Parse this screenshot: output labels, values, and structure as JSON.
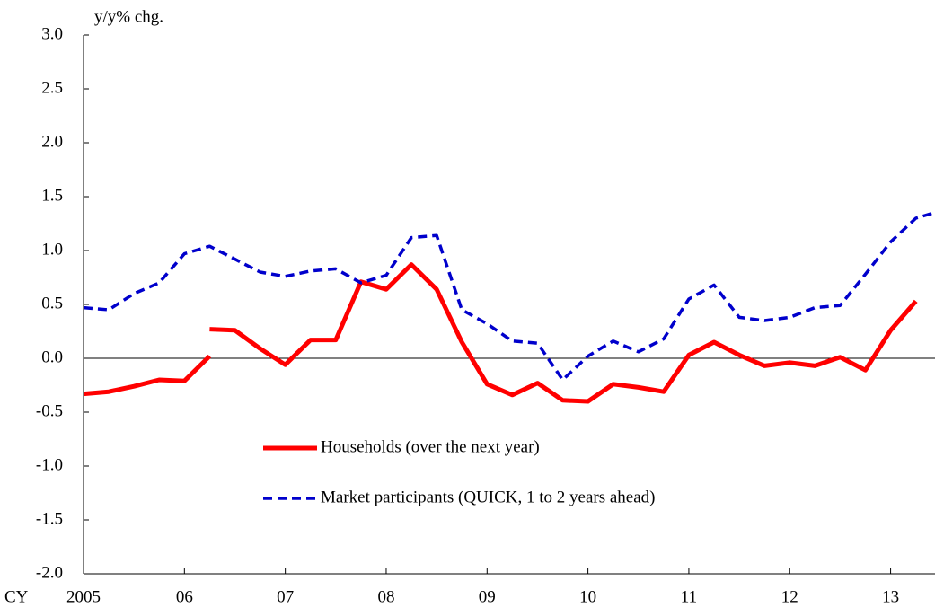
{
  "chart_data": {
    "type": "line",
    "ylabel": "y/y% chg.",
    "xprefix": "CY",
    "xlim": [
      2005,
      2013.44
    ],
    "ylim": [
      -2.0,
      3.0
    ],
    "xticks": [
      2005,
      {
        "value": 2006,
        "label": "06"
      },
      {
        "value": 2007,
        "label": "07"
      },
      {
        "value": 2008,
        "label": "08"
      },
      {
        "value": 2009,
        "label": "09"
      },
      {
        "value": 2010,
        "label": "10"
      },
      {
        "value": 2011,
        "label": "11"
      },
      {
        "value": 2012,
        "label": "12"
      },
      {
        "value": 2013,
        "label": "13"
      }
    ],
    "yticks": [
      {
        "value": -2,
        "label": "-2.0"
      },
      {
        "value": -1.5,
        "label": "-1.5"
      },
      {
        "value": -1,
        "label": "-1.0"
      },
      -0.5,
      {
        "value": 0,
        "label": "0.0"
      },
      0.5,
      {
        "value": 1,
        "label": "1.0"
      },
      1.5,
      {
        "value": 2,
        "label": "2.0"
      },
      2.5,
      {
        "value": 3,
        "label": "3.0"
      }
    ],
    "series": [
      {
        "name": "Households (over the next year)",
        "color": "#ff0000",
        "dash": false,
        "x": [
          2005,
          2005.25,
          2005.5,
          2005.75,
          2006,
          2006.25,
          2006.25,
          2006.25,
          2006.5,
          2006.75,
          2007,
          2007.25,
          2007.5,
          2007.75,
          2008,
          2008.25,
          2008.5,
          2008.75,
          2009,
          2009.25,
          2009.5,
          2009.75,
          2010,
          2010.25,
          2010.5,
          2010.75,
          2011,
          2011.25,
          2011.5,
          2011.75,
          2012,
          2012.25,
          2012.5,
          2012.75,
          2013,
          2013.25
        ],
        "values": [
          -0.33,
          -0.31,
          -0.26,
          -0.2,
          -0.21,
          0.02,
          null,
          0.27,
          0.26,
          0.09,
          -0.06,
          0.17,
          0.17,
          0.71,
          0.64,
          0.87,
          0.64,
          0.15,
          -0.24,
          -0.34,
          -0.23,
          -0.39,
          -0.4,
          -0.24,
          -0.27,
          -0.31,
          0.03,
          0.15,
          0.03,
          -0.07,
          -0.04,
          -0.07,
          0.01,
          -0.11,
          0.26,
          0.53
        ]
      },
      {
        "name": "Market participants (QUICK, 1 to 2 years ahead)",
        "color": "#0000cc",
        "dash": true,
        "x": [
          2005,
          2005.25,
          2005.5,
          2005.75,
          2006,
          2006.25,
          2006.5,
          2006.75,
          2007,
          2007.25,
          2007.5,
          2007.75,
          2008,
          2008.25,
          2008.5,
          2008.75,
          2009,
          2009.25,
          2009.5,
          2009.75,
          2010,
          2010.25,
          2010.5,
          2010.75,
          2011,
          2011.25,
          2011.5,
          2011.75,
          2012,
          2012.25,
          2012.5,
          2012.75,
          2013,
          2013.25,
          2013.5
        ],
        "values": [
          0.47,
          0.45,
          0.6,
          0.7,
          0.97,
          1.04,
          0.92,
          0.8,
          0.76,
          0.81,
          0.83,
          0.7,
          0.77,
          1.12,
          1.14,
          0.45,
          0.32,
          0.16,
          0.14,
          -0.2,
          0.02,
          0.16,
          0.06,
          0.18,
          0.55,
          0.68,
          0.38,
          0.35,
          0.38,
          0.47,
          0.49,
          0.78,
          1.08,
          1.3,
          1.37
        ]
      }
    ]
  }
}
